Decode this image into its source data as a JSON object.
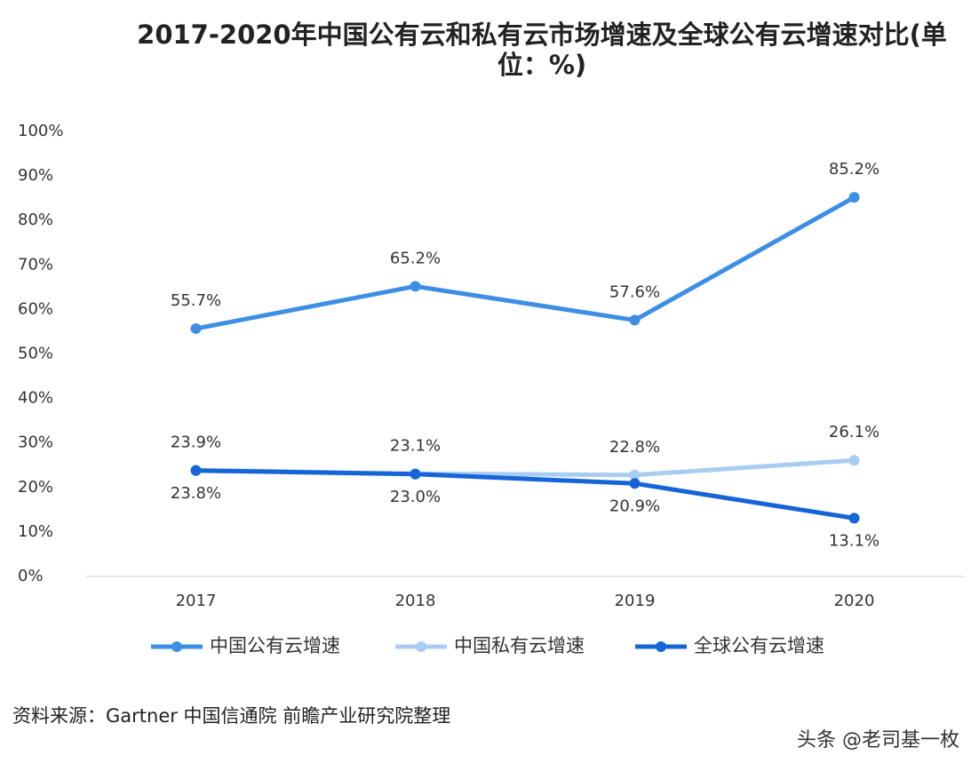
{
  "chart_data": {
    "type": "line",
    "title": "2017-2020年中国公有云和私有云市场增速及全球公有云增速对比(单位：%)",
    "categories": [
      "2017",
      "2018",
      "2019",
      "2020"
    ],
    "series": [
      {
        "name": "中国公有云增速",
        "color": "#3d8fe6",
        "values": [
          55.7,
          65.2,
          57.6,
          85.2
        ],
        "value_labels": [
          "55.7%",
          "65.2%",
          "57.6%",
          "85.2%"
        ]
      },
      {
        "name": "中国私有云增速",
        "color": "#a9cdf2",
        "values": [
          23.9,
          23.1,
          22.8,
          26.1
        ],
        "value_labels": [
          "23.9%",
          "23.1%",
          "22.8%",
          "26.1%"
        ]
      },
      {
        "name": "全球公有云增速",
        "color": "#1565d8",
        "values": [
          23.8,
          23.0,
          20.9,
          13.1
        ],
        "value_labels": [
          "23.8%",
          "23.0%",
          "20.9%",
          "13.1%"
        ]
      }
    ],
    "ylim": [
      0,
      100
    ],
    "yticks": [
      {
        "value": 0,
        "label": "0%"
      },
      {
        "value": 10,
        "label": "10%"
      },
      {
        "value": 20,
        "label": "20%"
      },
      {
        "value": 30,
        "label": "30%"
      },
      {
        "value": 40,
        "label": "40%"
      },
      {
        "value": 50,
        "label": "50%"
      },
      {
        "value": 60,
        "label": "60%"
      },
      {
        "value": 70,
        "label": "70%"
      },
      {
        "value": 80,
        "label": "80%"
      },
      {
        "value": 90,
        "label": "90%"
      },
      {
        "value": 100,
        "label": "100%"
      }
    ],
    "grid": false,
    "legend": "bottom",
    "source": "资料来源：Gartner 中国信通院 前瞻产业研究院整理",
    "watermark": "头条 @老司基一枚"
  }
}
